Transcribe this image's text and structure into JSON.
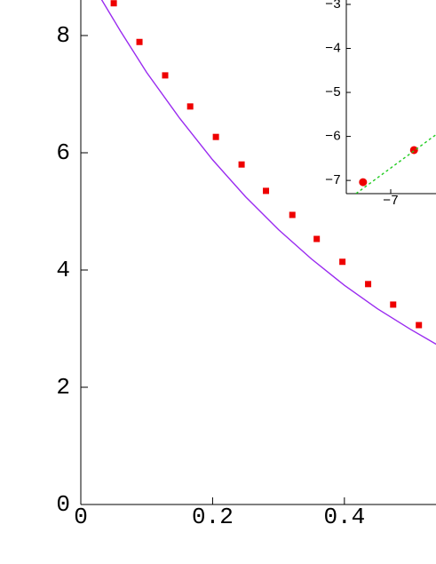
{
  "chart_data": [
    {
      "type": "scatter",
      "xlim": [
        0,
        0.539
      ],
      "ylim": [
        0,
        8.606
      ],
      "xticks": [
        0,
        0.2,
        0.4
      ],
      "yticks": [
        0,
        2,
        4,
        6,
        8
      ],
      "series": [
        {
          "color": "#ee0000",
          "marker": "square",
          "x": [
            0.05,
            0.089,
            0.128,
            0.166,
            0.205,
            0.244,
            0.281,
            0.321,
            0.358,
            0.397,
            0.436,
            0.474,
            0.513
          ],
          "values": [
            8.55,
            7.89,
            7.32,
            6.79,
            6.27,
            5.8,
            5.35,
            4.94,
            4.53,
            4.14,
            3.76,
            3.41,
            3.06
          ]
        },
        {
          "color": "#9a2bf0",
          "line": "solid",
          "x": [
            0.03,
            0.06,
            0.1,
            0.15,
            0.2,
            0.25,
            0.3,
            0.35,
            0.4,
            0.45,
            0.5,
            0.54
          ],
          "values": [
            8.64,
            8.08,
            7.37,
            6.59,
            5.88,
            5.25,
            4.69,
            4.19,
            3.74,
            3.34,
            2.99,
            2.73
          ]
        }
      ]
    },
    {
      "type": "scatter",
      "xlim": [
        -8.01,
        -5.97
      ],
      "ylim": [
        -7.3,
        -2.9
      ],
      "xticks": [
        {
          "value": -7,
          "label": "−7"
        }
      ],
      "yticks": [
        {
          "value": -3,
          "label": "−3"
        },
        {
          "value": -4,
          "label": "−4"
        },
        {
          "value": -5,
          "label": "−5"
        },
        {
          "value": -6,
          "label": "−6"
        },
        {
          "value": -7,
          "label": "−7"
        }
      ],
      "series": [
        {
          "color": "#ee0000",
          "marker": "circle",
          "x": [
            -7.63,
            -6.47
          ],
          "values": [
            -7.04,
            -6.31
          ]
        },
        {
          "color": "#22cc22",
          "line": "dashed",
          "x": [
            -7.79,
            -5.97
          ],
          "values": [
            -7.3,
            -5.96
          ]
        }
      ]
    }
  ]
}
